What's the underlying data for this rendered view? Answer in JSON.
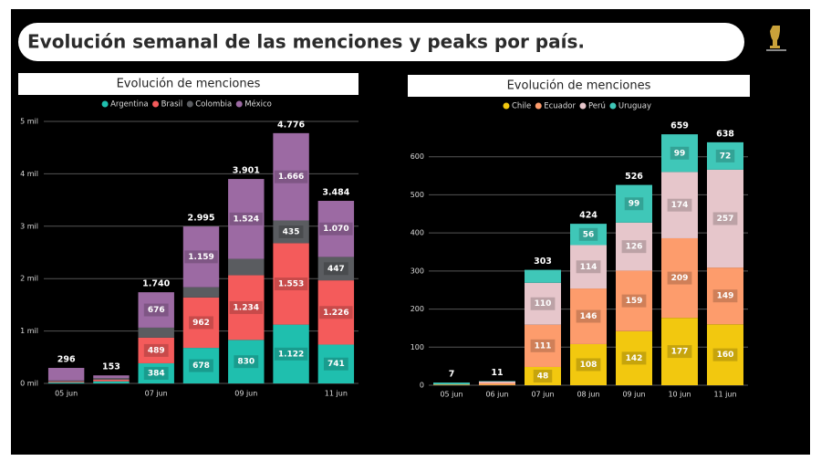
{
  "title": "Evolución semanal de las menciones y peaks por país.",
  "chart_data": [
    {
      "type": "stacked-bar",
      "title": "Evolución de menciones",
      "categories": [
        "05 jun",
        null,
        "07 jun",
        null,
        "09 jun",
        null,
        "11 jun"
      ],
      "series": [
        {
          "name": "Argentina",
          "color": "#1fbfae",
          "values": [
            20,
            40,
            384,
            678,
            830,
            1122,
            741
          ],
          "value_labels": [
            null,
            null,
            "384",
            "678",
            "830",
            "1.122",
            "741"
          ]
        },
        {
          "name": "Brasil",
          "color": "#f45b5b",
          "values": [
            15,
            30,
            489,
            962,
            1234,
            1553,
            1226
          ],
          "value_labels": [
            null,
            null,
            "489",
            "962",
            "1.234",
            "1.553",
            "1.226"
          ]
        },
        {
          "name": "Colombia",
          "color": "#5a5c60",
          "values": [
            20,
            30,
            191,
            196,
            313,
            435,
            447
          ],
          "value_labels": [
            null,
            null,
            null,
            null,
            null,
            "435",
            "447"
          ]
        },
        {
          "name": "México",
          "color": "#9c6aa3",
          "values": [
            241,
            53,
            676,
            1159,
            1524,
            1666,
            1070
          ],
          "value_labels": [
            null,
            null,
            "676",
            "1.159",
            "1.524",
            "1.666",
            "1.070"
          ]
        }
      ],
      "totals": {
        "values": [
          296,
          153,
          1740,
          2995,
          3901,
          4776,
          3484
        ],
        "value_labels": [
          "296",
          "153",
          "1.740",
          "2.995",
          "3.901",
          "4.776",
          "3.484"
        ]
      },
      "ylim": [
        0,
        5000
      ],
      "yticks": [
        {
          "value": 0,
          "label": "0 mil"
        },
        {
          "value": 1000,
          "label": "1 mil"
        },
        {
          "value": 2000,
          "label": "2 mil"
        },
        {
          "value": 3000,
          "label": "3 mil"
        },
        {
          "value": 4000,
          "label": "4 mil"
        },
        {
          "value": 5000,
          "label": "5 mil"
        }
      ],
      "grid": true,
      "legend": "top"
    },
    {
      "type": "stacked-bar",
      "title": "Evolución de menciones",
      "categories": [
        "05 jun",
        "06 jun",
        "07 jun",
        "08 jun",
        "09 jun",
        "10 jun",
        "11 jun"
      ],
      "series": [
        {
          "name": "Chile",
          "color": "#f2c80f",
          "values": [
            1,
            1,
            48,
            108,
            142,
            177,
            160
          ]
        },
        {
          "name": "Ecuador",
          "color": "#fd9c6c",
          "values": [
            1,
            5,
            111,
            146,
            159,
            209,
            149
          ]
        },
        {
          "name": "Perú",
          "color": "#e6c6cb",
          "values": [
            0,
            4,
            110,
            114,
            126,
            174,
            257
          ]
        },
        {
          "name": "Uruguay",
          "color": "#3fc7b8",
          "values": [
            5,
            1,
            34,
            56,
            99,
            99,
            72
          ]
        }
      ],
      "label_min": 40,
      "totals": {
        "values": [
          7,
          11,
          303,
          424,
          526,
          659,
          638
        ]
      },
      "ylim": [
        0,
        700
      ],
      "yticks": [
        0,
        100,
        200,
        300,
        400,
        500,
        600
      ],
      "grid": true,
      "legend": "top"
    }
  ]
}
